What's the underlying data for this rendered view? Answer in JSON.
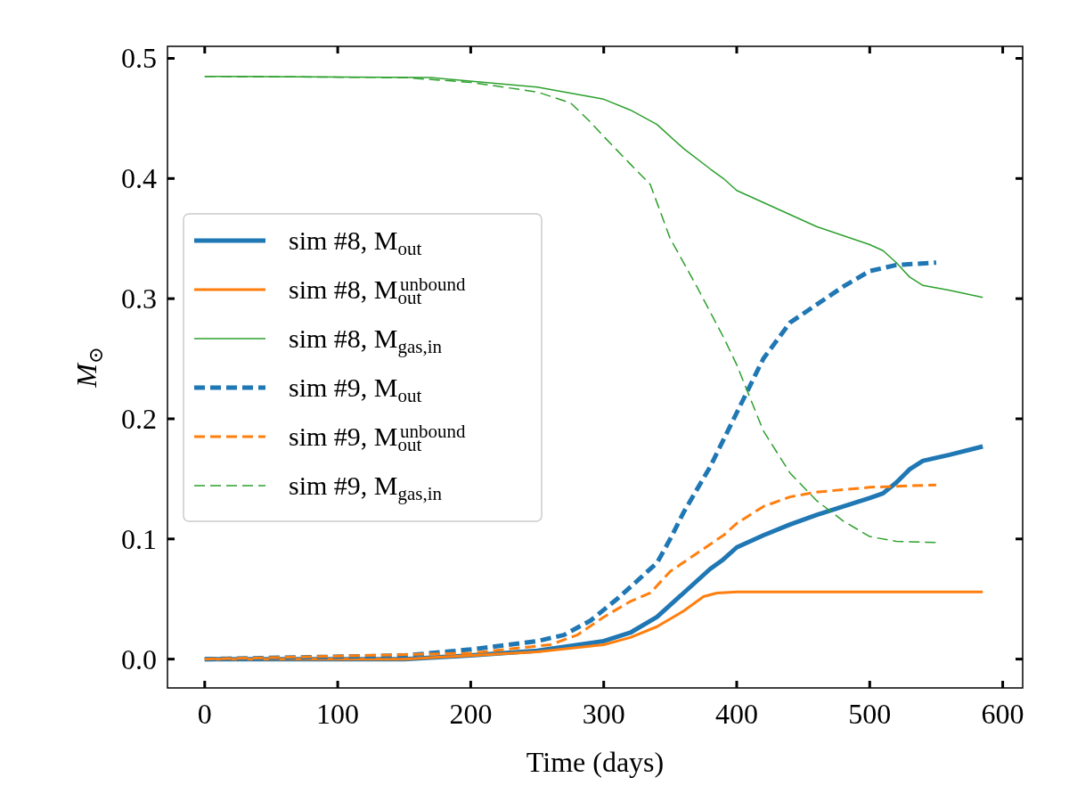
{
  "chart_data": {
    "type": "line",
    "xlabel": "Time (days)",
    "ylabel": "M$_{⊙}$",
    "xlim": [
      -28,
      615
    ],
    "ylim": [
      -0.024,
      0.51
    ],
    "xticks": [
      0,
      100,
      200,
      300,
      400,
      500,
      600
    ],
    "yticks": [
      {
        "value": 0,
        "label": "0.0"
      },
      {
        "value": 0.1,
        "label": "0.1"
      },
      {
        "value": 0.2,
        "label": "0.2"
      },
      {
        "value": 0.3,
        "label": "0.3"
      },
      {
        "value": 0.4,
        "label": "0.4"
      },
      {
        "value": 0.5,
        "label": "0.5"
      }
    ],
    "grid": false,
    "legend": "left",
    "series": [
      {
        "name": "sim #8, M$_{out}$",
        "color": "#1f77b4",
        "line_style": "solid",
        "x": [
          0,
          150,
          200,
          250,
          300,
          320,
          340,
          360,
          380,
          390,
          400,
          420,
          440,
          460,
          480,
          500,
          510,
          520,
          530,
          540,
          560,
          585
        ],
        "values": [
          0,
          0,
          0.003,
          0.007,
          0.015,
          0.022,
          0.035,
          0.055,
          0.075,
          0.083,
          0.093,
          0.103,
          0.112,
          0.12,
          0.127,
          0.134,
          0.138,
          0.147,
          0.158,
          0.165,
          0.17,
          0.177
        ]
      },
      {
        "name": "sim #8, M$_{out}$$^{unbound}$",
        "color": "#ff7f0e",
        "line_style": "solid",
        "x": [
          0,
          150,
          250,
          300,
          320,
          340,
          360,
          375,
          385,
          400,
          585
        ],
        "values": [
          0,
          0,
          0.006,
          0.012,
          0.018,
          0.027,
          0.04,
          0.052,
          0.055,
          0.056,
          0.056
        ]
      },
      {
        "name": "sim #8, M$_{gas,in}$",
        "color": "#2ca02c",
        "line_style": "solid",
        "x": [
          0,
          170,
          250,
          300,
          320,
          340,
          360,
          380,
          390,
          400,
          420,
          440,
          460,
          500,
          510,
          520,
          530,
          540,
          560,
          585
        ],
        "values": [
          0.485,
          0.484,
          0.476,
          0.466,
          0.457,
          0.445,
          0.425,
          0.408,
          0.4,
          0.39,
          0.38,
          0.37,
          0.36,
          0.345,
          0.34,
          0.33,
          0.318,
          0.311,
          0.307,
          0.301
        ]
      },
      {
        "name": "sim #9, M$_{out}$",
        "color": "#1f77b4",
        "line_style": "dashed",
        "x": [
          0,
          150,
          200,
          250,
          270,
          290,
          310,
          330,
          340,
          350,
          360,
          380,
          400,
          420,
          440,
          460,
          480,
          500,
          520,
          550
        ],
        "values": [
          0,
          0.003,
          0.008,
          0.015,
          0.02,
          0.032,
          0.05,
          0.07,
          0.08,
          0.1,
          0.122,
          0.16,
          0.205,
          0.25,
          0.28,
          0.295,
          0.31,
          0.323,
          0.328,
          0.33
        ]
      },
      {
        "name": "sim #9, M$_{out}$$^{unbound}$",
        "color": "#ff7f0e",
        "line_style": "dashed",
        "x": [
          0,
          200,
          260,
          280,
          300,
          320,
          335,
          350,
          370,
          390,
          400,
          420,
          440,
          460,
          500,
          550
        ],
        "values": [
          0,
          0.005,
          0.012,
          0.02,
          0.035,
          0.048,
          0.055,
          0.073,
          0.088,
          0.103,
          0.113,
          0.127,
          0.135,
          0.139,
          0.143,
          0.145
        ]
      },
      {
        "name": "sim #9, M$_{gas,in}$",
        "color": "#2ca02c",
        "line_style": "dashed",
        "x": [
          0,
          150,
          200,
          250,
          275,
          290,
          300,
          320,
          335,
          350,
          370,
          390,
          400,
          420,
          440,
          460,
          480,
          500,
          520,
          550
        ],
        "values": [
          0.485,
          0.484,
          0.48,
          0.472,
          0.463,
          0.447,
          0.435,
          0.412,
          0.395,
          0.35,
          0.31,
          0.268,
          0.245,
          0.19,
          0.155,
          0.132,
          0.115,
          0.102,
          0.098,
          0.097
        ]
      }
    ]
  }
}
